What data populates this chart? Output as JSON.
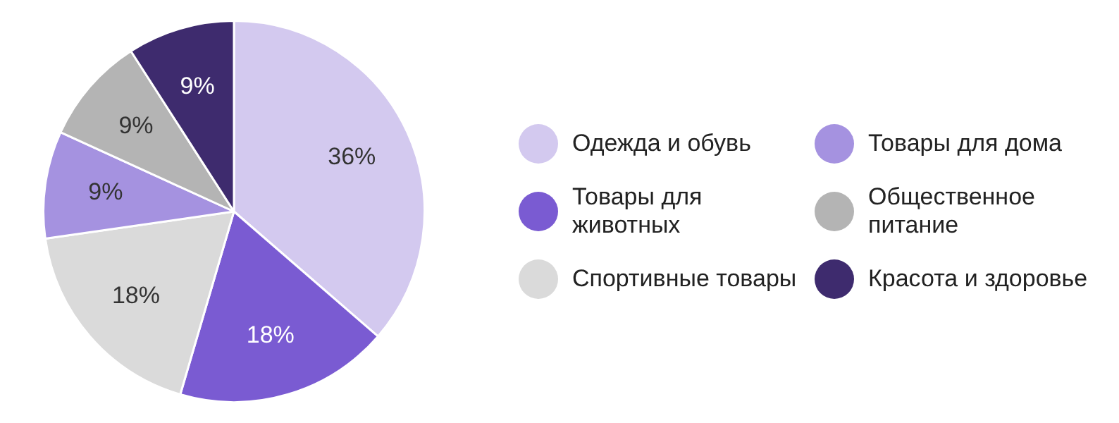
{
  "chart_data": {
    "type": "pie",
    "categories": [
      "Одежда и обувь",
      "Товары для животных",
      "Спортивные товары",
      "Товары для дома",
      "Общественное питание",
      "Красота и здоровье"
    ],
    "values": [
      36,
      18,
      18,
      9,
      9,
      9
    ],
    "colors": [
      "#d3c9ef",
      "#7a5bd2",
      "#dadada",
      "#a592e0",
      "#b4b4b4",
      "#3e2b6e"
    ],
    "value_labels": [
      "36%",
      "18%",
      "18%",
      "9%",
      "9%",
      "9%"
    ],
    "legend": "right"
  }
}
